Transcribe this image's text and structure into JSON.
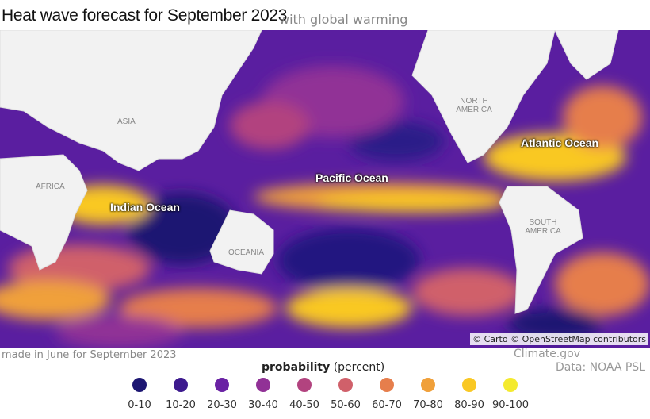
{
  "header": {
    "title": "Heat wave forecast for September 2023",
    "subtitle": "with global warming"
  },
  "map": {
    "ocean_labels": [
      "Pacific Ocean",
      "Atlantic Ocean",
      "Indian Ocean"
    ],
    "land_labels": [
      "ASIA",
      "AFRICA",
      "NORTH AMERICA",
      "SOUTH AMERICA",
      "OCEANIA"
    ],
    "attribution": "© Carto © OpenStreetMap contributors"
  },
  "footer": {
    "note": "made in June for September 2023",
    "credit": "Climate.gov",
    "source": "Data: NOAA PSL"
  },
  "legend": {
    "title": "probability",
    "unit": "(percent)",
    "items": [
      {
        "label": "0-10",
        "color": "#1c1672"
      },
      {
        "label": "10-20",
        "color": "#3d1a8e"
      },
      {
        "label": "20-30",
        "color": "#6a22a4"
      },
      {
        "label": "30-40",
        "color": "#913196"
      },
      {
        "label": "40-50",
        "color": "#b2437f"
      },
      {
        "label": "50-60",
        "color": "#d0606a"
      },
      {
        "label": "60-70",
        "color": "#e67e4c"
      },
      {
        "label": "70-80",
        "color": "#f0a03a"
      },
      {
        "label": "80-90",
        "color": "#f9c824"
      },
      {
        "label": "90-100",
        "color": "#f4ea2e"
      }
    ]
  }
}
